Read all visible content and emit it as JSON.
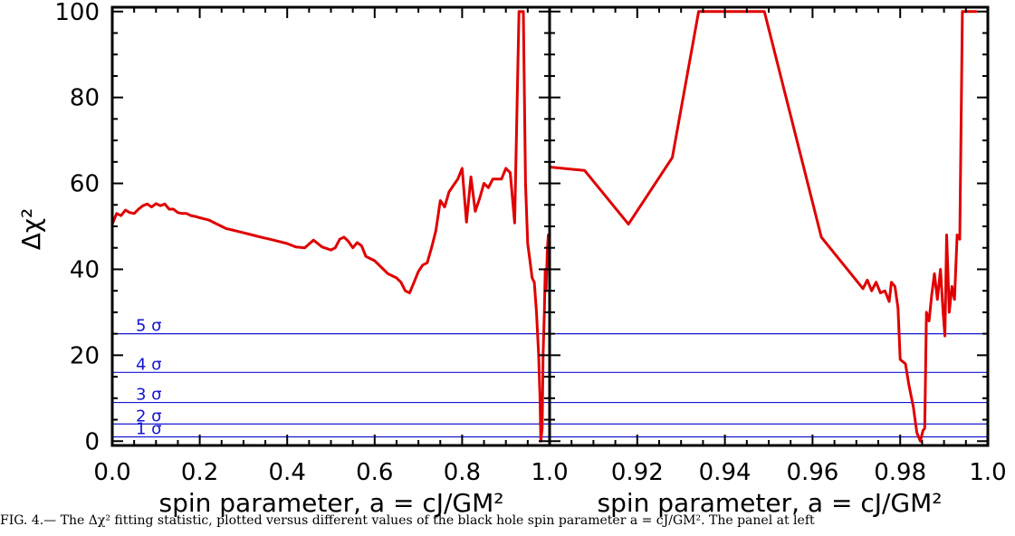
{
  "caption": "FIG. 4.— The Δχ² fitting statistic, plotted versus different values of the black hole spin parameter a = cJ/GM². The panel at left",
  "colors": {
    "series": "#e00000",
    "sigma_lines": "#1414d2",
    "axes": "#000000"
  },
  "chart_data": [
    {
      "type": "line",
      "panel": "left",
      "xlabel": "spin parameter, a = cJ/GM²",
      "ylabel": "Δχ²",
      "xlim": [
        0.0,
        1.0
      ],
      "ylim": [
        -1,
        101
      ],
      "x_ticks": [
        "0.0",
        "0.2",
        "0.4",
        "0.6",
        "0.8",
        "1.0"
      ],
      "y_ticks": [
        "0",
        "20",
        "40",
        "60",
        "80",
        "100"
      ],
      "sigma_levels": [
        {
          "label": "1 σ",
          "value": 1.0
        },
        {
          "label": "2 σ",
          "value": 4.0
        },
        {
          "label": "3 σ",
          "value": 9.0
        },
        {
          "label": "4 σ",
          "value": 16.0
        },
        {
          "label": "5 σ",
          "value": 25.0
        }
      ],
      "series": [
        {
          "x": [
            0.0,
            0.01,
            0.02,
            0.03,
            0.04,
            0.05,
            0.06,
            0.07,
            0.08,
            0.09,
            0.1,
            0.11,
            0.12,
            0.13,
            0.14,
            0.15,
            0.16,
            0.17,
            0.18,
            0.19,
            0.2,
            0.22,
            0.24,
            0.26,
            0.28,
            0.3,
            0.32,
            0.34,
            0.36,
            0.38,
            0.4,
            0.42,
            0.44,
            0.46,
            0.48,
            0.5,
            0.51,
            0.52,
            0.53,
            0.54,
            0.55,
            0.56,
            0.57,
            0.58,
            0.59,
            0.6,
            0.61,
            0.62,
            0.63,
            0.64,
            0.65,
            0.66,
            0.67,
            0.68,
            0.69,
            0.7,
            0.71,
            0.72,
            0.73,
            0.74,
            0.75,
            0.76,
            0.77,
            0.78,
            0.79,
            0.8,
            0.81,
            0.82,
            0.83,
            0.84,
            0.85,
            0.86,
            0.87,
            0.88,
            0.89,
            0.9,
            0.91,
            0.92,
            0.93,
            0.94,
            0.945,
            0.95,
            0.955,
            0.96,
            0.965,
            0.97,
            0.975,
            0.978,
            0.98,
            0.983,
            0.985,
            0.988,
            0.99,
            0.992,
            0.995,
            0.997,
            1.0
          ],
          "y": [
            50.5,
            53.0,
            52.5,
            53.8,
            53.2,
            53.0,
            54.0,
            54.8,
            55.2,
            54.5,
            55.3,
            54.8,
            55.2,
            54.0,
            54.0,
            53.2,
            53.0,
            53.0,
            52.5,
            52.3,
            52.0,
            51.5,
            50.5,
            49.5,
            49.0,
            48.5,
            48.0,
            47.5,
            47.0,
            46.5,
            46.0,
            45.2,
            45.0,
            46.8,
            45.2,
            44.5,
            45.0,
            47.0,
            47.5,
            46.5,
            45.0,
            46.2,
            45.5,
            43.0,
            42.5,
            42.0,
            41.0,
            40.0,
            39.0,
            38.5,
            38.0,
            37.0,
            35.0,
            34.5,
            37.0,
            39.5,
            41.0,
            41.5,
            45.0,
            49.0,
            56.0,
            54.5,
            58.0,
            59.5,
            61.0,
            63.5,
            51.0,
            61.5,
            53.5,
            56.5,
            60.0,
            59.0,
            61.0,
            61.0,
            61.0,
            63.5,
            62.5,
            50.8,
            100.0,
            100.0,
            60.0,
            46.0,
            42.0,
            38.0,
            37.0,
            30.0,
            20.0,
            10.0,
            0.0,
            3.0,
            20.0,
            30.0,
            40.0,
            35.0,
            45.0,
            48.0,
            46.0
          ]
        }
      ]
    },
    {
      "type": "line",
      "panel": "right",
      "xlabel": "spin parameter, a = cJ/GM²",
      "xlim": [
        0.9,
        1.0
      ],
      "ylim": [
        -1,
        101
      ],
      "x_ticks": [
        "0.92",
        "0.94",
        "0.96",
        "0.98",
        "1.0"
      ],
      "sigma_levels": [
        1.0,
        4.0,
        9.0,
        16.0,
        25.0
      ],
      "series": [
        {
          "x": [
            0.9,
            0.908,
            0.918,
            0.928,
            0.934,
            0.949,
            0.962,
            0.9715,
            0.9725,
            0.9735,
            0.9745,
            0.9755,
            0.9765,
            0.9775,
            0.978,
            0.9788,
            0.9795,
            0.98,
            0.9812,
            0.982,
            0.983,
            0.9838,
            0.9846,
            0.9852,
            0.9856,
            0.986,
            0.9866,
            0.9872,
            0.9878,
            0.9885,
            0.9892,
            0.9898,
            0.9902,
            0.9906,
            0.9912,
            0.9918,
            0.9924,
            0.993,
            0.9936,
            0.9942,
            0.9948,
            0.9955,
            0.996,
            0.997,
            0.9973,
            0.9975
          ],
          "y": [
            63.8,
            63.0,
            50.5,
            66.0,
            100.0,
            100.0,
            47.5,
            35.5,
            37.5,
            35.0,
            37.0,
            34.5,
            35.0,
            32.5,
            37.0,
            36.0,
            31.0,
            19.0,
            18.0,
            13.0,
            8.0,
            2.0,
            0.0,
            2.5,
            3.0,
            30.0,
            28.0,
            34.0,
            39.0,
            33.0,
            40.0,
            30.0,
            24.5,
            48.0,
            30.0,
            36.0,
            33.0,
            48.0,
            47.0,
            100.0,
            100.0,
            100.0,
            100.0,
            100.0,
            100.0,
            100.0
          ]
        }
      ]
    }
  ]
}
